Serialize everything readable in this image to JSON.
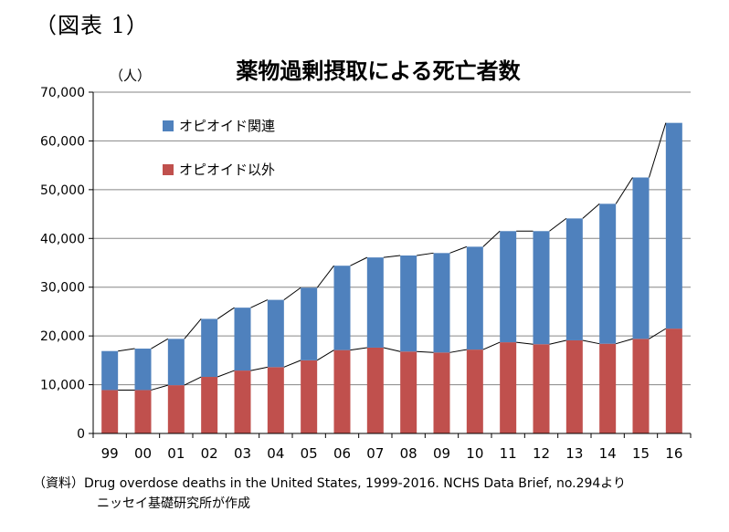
{
  "figure_label": "（図表 1）",
  "source": {
    "line1": "（資料）Drug overdose deaths in the United States, 1999-2016. NCHS Data Brief, no.294より",
    "line2": "ニッセイ基礎研究所が作成"
  },
  "colors": {
    "opioid": "#4f81bd",
    "non_opioid": "#c0504d",
    "grid": "#868686",
    "line": "#000000"
  },
  "chart_data": {
    "type": "bar",
    "stacked": true,
    "title": "薬物過剰摂取による死亡者数",
    "ylabel": "（人）",
    "xlabel": "",
    "ylim": [
      0,
      70000
    ],
    "yticks": [
      0,
      10000,
      20000,
      30000,
      40000,
      50000,
      60000,
      70000
    ],
    "ytick_labels": [
      "0",
      "10,000",
      "20,000",
      "30,000",
      "40,000",
      "50,000",
      "60,000",
      "70,000"
    ],
    "categories": [
      "99",
      "00",
      "01",
      "02",
      "03",
      "04",
      "05",
      "06",
      "07",
      "08",
      "09",
      "10",
      "11",
      "12",
      "13",
      "14",
      "15",
      "16"
    ],
    "series": [
      {
        "name": "オピオイド以外",
        "values": [
          8900,
          8900,
          9900,
          11600,
          12900,
          13600,
          15000,
          17100,
          17600,
          16800,
          16600,
          17200,
          18700,
          18300,
          19100,
          18400,
          19400,
          21500
        ]
      },
      {
        "name": "オピオイド関連",
        "values": [
          8000,
          8500,
          9500,
          11900,
          12900,
          13800,
          14900,
          17300,
          18500,
          19700,
          20400,
          21100,
          22800,
          23200,
          25000,
          28700,
          33100,
          42200
        ]
      }
    ],
    "legend": {
      "position": "top-left",
      "order": [
        "オピオイド関連",
        "オピオイド以外"
      ]
    },
    "grid": true,
    "connector_lines": true
  }
}
